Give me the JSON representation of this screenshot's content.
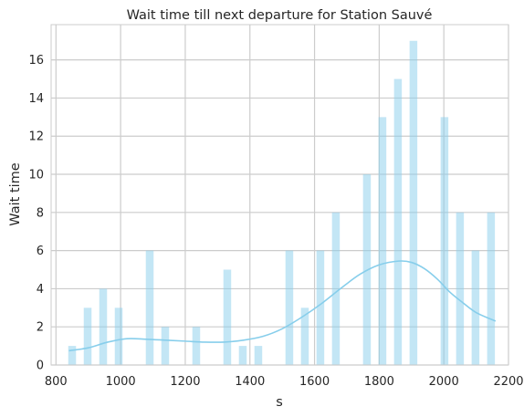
{
  "chart_data": {
    "type": "bar",
    "title": "Wait time till next departure for Station Sauvé",
    "xlabel": "s",
    "ylabel": "Wait time",
    "xlim": [
      785,
      2200
    ],
    "ylim": [
      0,
      17.85
    ],
    "xticks": [
      800,
      1000,
      1200,
      1400,
      1600,
      1800,
      2000,
      2200
    ],
    "yticks": [
      0,
      2,
      4,
      6,
      8,
      10,
      12,
      14,
      16
    ],
    "grid": true,
    "bar_color": "#87CEEB",
    "bar_alpha": 0.5,
    "line_color": "#87CEEB",
    "grid_color": "#cccccc",
    "bars": [
      {
        "x": 850,
        "value": 1
      },
      {
        "x": 898,
        "value": 3
      },
      {
        "x": 946,
        "value": 4
      },
      {
        "x": 994,
        "value": 3
      },
      {
        "x": 1042,
        "value": 0
      },
      {
        "x": 1090,
        "value": 6
      },
      {
        "x": 1138,
        "value": 2
      },
      {
        "x": 1186,
        "value": 0
      },
      {
        "x": 1234,
        "value": 2
      },
      {
        "x": 1282,
        "value": 0
      },
      {
        "x": 1330,
        "value": 5
      },
      {
        "x": 1378,
        "value": 1
      },
      {
        "x": 1426,
        "value": 1
      },
      {
        "x": 1474,
        "value": 0
      },
      {
        "x": 1522,
        "value": 6
      },
      {
        "x": 1570,
        "value": 3
      },
      {
        "x": 1618,
        "value": 6
      },
      {
        "x": 1666,
        "value": 8
      },
      {
        "x": 1714,
        "value": 0
      },
      {
        "x": 1762,
        "value": 10
      },
      {
        "x": 1810,
        "value": 13
      },
      {
        "x": 1858,
        "value": 15
      },
      {
        "x": 1906,
        "value": 17
      },
      {
        "x": 1954,
        "value": 0
      },
      {
        "x": 2002,
        "value": 13
      },
      {
        "x": 2050,
        "value": 8
      },
      {
        "x": 2098,
        "value": 6
      },
      {
        "x": 2146,
        "value": 8
      }
    ],
    "kde": {
      "x": [
        840,
        900,
        960,
        1020,
        1080,
        1140,
        1200,
        1260,
        1320,
        1380,
        1440,
        1500,
        1560,
        1620,
        1680,
        1740,
        1800,
        1860,
        1900,
        1940,
        1980,
        2020,
        2060,
        2100,
        2160
      ],
      "y": [
        0.75,
        0.9,
        1.2,
        1.38,
        1.35,
        1.3,
        1.25,
        1.2,
        1.2,
        1.3,
        1.5,
        1.9,
        2.5,
        3.2,
        4.0,
        4.75,
        5.25,
        5.45,
        5.38,
        5.05,
        4.5,
        3.8,
        3.25,
        2.75,
        2.3
      ]
    }
  }
}
